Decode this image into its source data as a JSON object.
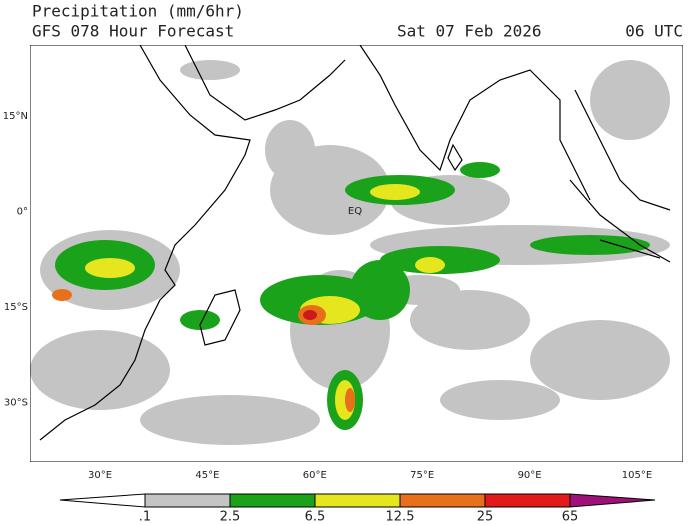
{
  "header": {
    "title": "Precipitation (mm/6hr)",
    "subtitle": "GFS 078 Hour Forecast",
    "date": "Sat 07 Feb 2026",
    "time": "06 UTC"
  },
  "map": {
    "lat_labels": [
      "15°N",
      "0°",
      "15°S",
      "30°S"
    ],
    "lon_labels": [
      "30°E",
      "45°E",
      "60°E",
      "75°E",
      "90°E",
      "105°E"
    ],
    "annotation": "EQ"
  },
  "colorbar": {
    "labels": [
      ".1",
      "2.5",
      "6.5",
      "12.5",
      "25",
      "65"
    ]
  }
}
